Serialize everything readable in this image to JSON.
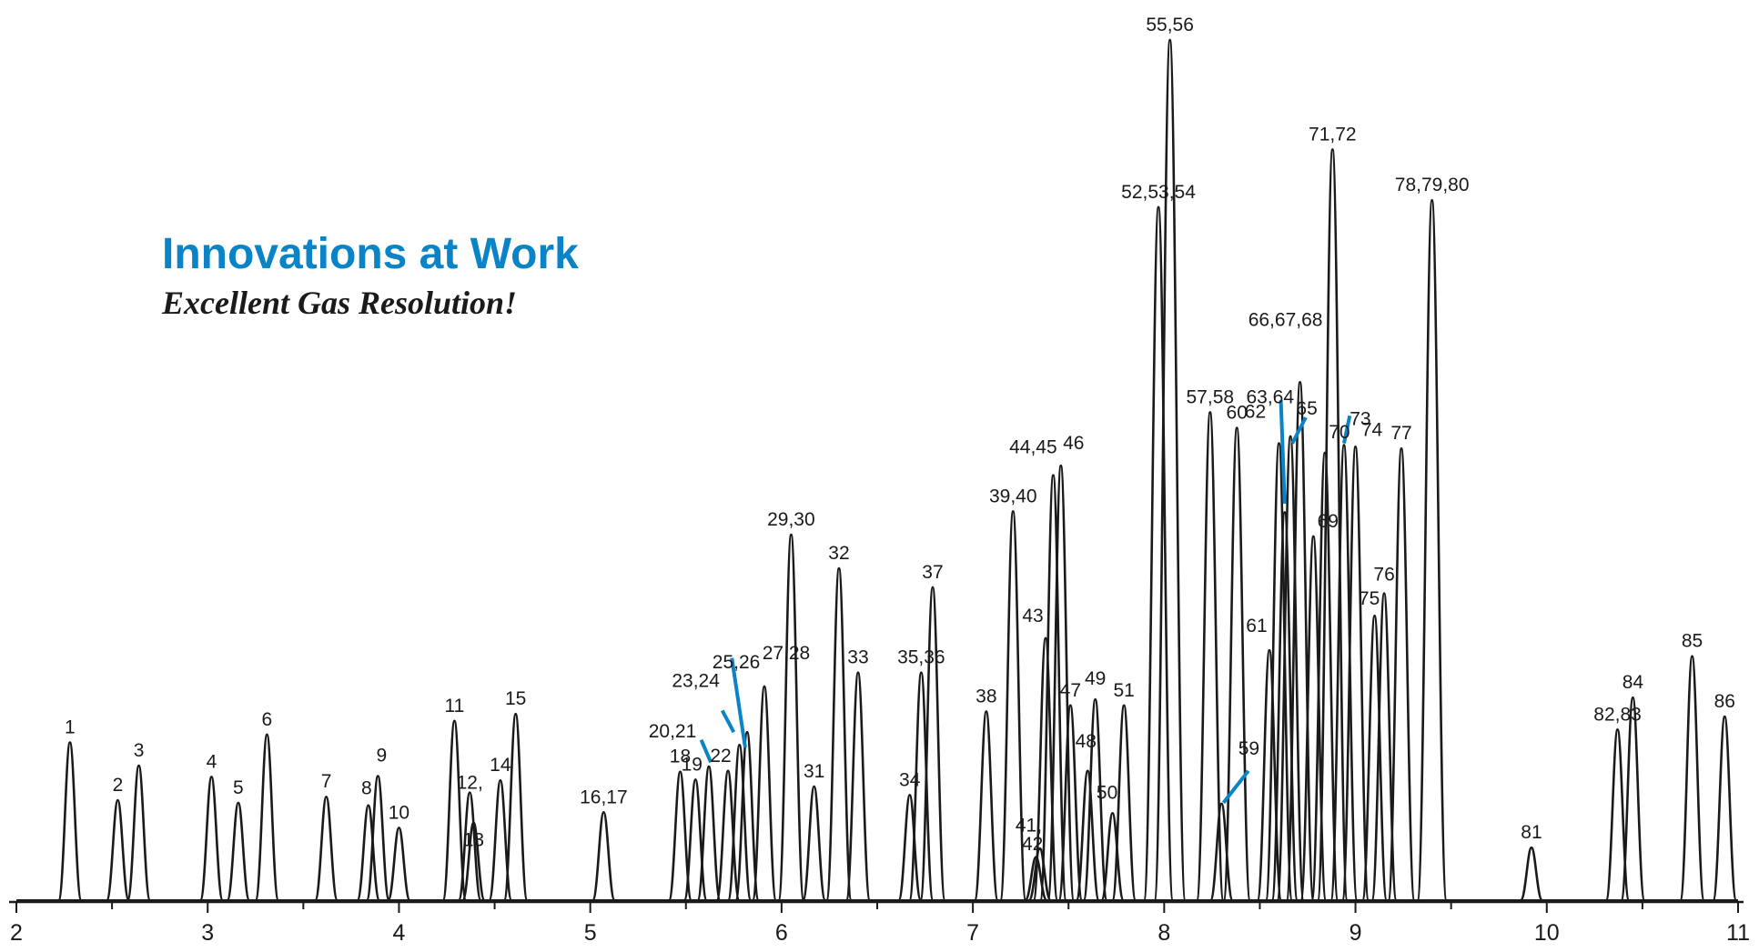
{
  "chart_data": {
    "type": "line",
    "title": "Innovations at Work",
    "subtitle": "Excellent Gas Resolution!",
    "xlabel": "",
    "ylabel": "",
    "xlim": [
      2,
      11
    ],
    "ylim": [
      0,
      100
    ],
    "x_ticks": [
      "2",
      "3",
      "4",
      "5",
      "6",
      "7",
      "8",
      "9",
      "10",
      "11"
    ],
    "grid": false,
    "legend": "none",
    "colors": {
      "trace": "#1a1a1a",
      "callout": "#0a84c6",
      "title": "#0a84c6"
    },
    "peaks": [
      {
        "label": "1",
        "x": 2.28,
        "y": 18.3
      },
      {
        "label": "2",
        "x": 2.53,
        "y": 11.6
      },
      {
        "label": "3",
        "x": 2.64,
        "y": 15.6
      },
      {
        "label": "4",
        "x": 3.02,
        "y": 14.3
      },
      {
        "label": "5",
        "x": 3.16,
        "y": 11.3
      },
      {
        "label": "6",
        "x": 3.31,
        "y": 19.2
      },
      {
        "label": "7",
        "x": 3.62,
        "y": 12.0
      },
      {
        "label": "8",
        "x": 3.84,
        "y": 11.0
      },
      {
        "label": "9",
        "x": 3.89,
        "y": 14.4
      },
      {
        "label": "10",
        "x": 4.0,
        "y": 8.4
      },
      {
        "label": "11",
        "x": 4.29,
        "y": 20.8
      },
      {
        "label": "12,",
        "x": 4.37,
        "y": 12.5
      },
      {
        "label": "13",
        "x": 4.39,
        "y": 9.0
      },
      {
        "label": "14",
        "x": 4.53,
        "y": 13.9
      },
      {
        "label": "15",
        "x": 4.61,
        "y": 21.6
      },
      {
        "label": "16,17",
        "x": 5.07,
        "y": 10.2
      },
      {
        "label": "18",
        "x": 5.47,
        "y": 14.9
      },
      {
        "label": "19",
        "x": 5.55,
        "y": 14.0
      },
      {
        "label": "20,21",
        "x": 5.62,
        "y": 15.5
      },
      {
        "label": "22",
        "x": 5.72,
        "y": 15.0
      },
      {
        "label": "23,24",
        "x": 5.78,
        "y": 18.0
      },
      {
        "label": "25,26",
        "x": 5.82,
        "y": 19.5
      },
      {
        "label": "27,28",
        "x": 5.91,
        "y": 24.8
      },
      {
        "label": "29,30",
        "x": 6.05,
        "y": 42.4
      },
      {
        "label": "31",
        "x": 6.17,
        "y": 13.2
      },
      {
        "label": "32",
        "x": 6.3,
        "y": 38.5
      },
      {
        "label": "33",
        "x": 6.4,
        "y": 26.4
      },
      {
        "label": "34",
        "x": 6.67,
        "y": 12.2
      },
      {
        "label": "35,36",
        "x": 6.73,
        "y": 26.4
      },
      {
        "label": "37",
        "x": 6.79,
        "y": 36.3
      },
      {
        "label": "38",
        "x": 7.07,
        "y": 21.9
      },
      {
        "label": "39,40",
        "x": 7.21,
        "y": 45.1
      },
      {
        "label": "41,",
        "x": 7.33,
        "y": 5.0
      },
      {
        "label": "42",
        "x": 7.35,
        "y": 6.0
      },
      {
        "label": "43",
        "x": 7.38,
        "y": 30.4
      },
      {
        "label": "44,45",
        "x": 7.42,
        "y": 49.3
      },
      {
        "label": "46",
        "x": 7.46,
        "y": 50.4
      },
      {
        "label": "47",
        "x": 7.51,
        "y": 22.6
      },
      {
        "label": "48",
        "x": 7.6,
        "y": 15.0
      },
      {
        "label": "49",
        "x": 7.64,
        "y": 23.3
      },
      {
        "label": "50",
        "x": 7.73,
        "y": 10.1
      },
      {
        "label": "51",
        "x": 7.79,
        "y": 22.6
      },
      {
        "label": "52,53,54",
        "x": 7.97,
        "y": 80.4
      },
      {
        "label": "55,56",
        "x": 8.03,
        "y": 99.8
      },
      {
        "label": "57,58",
        "x": 8.24,
        "y": 56.6
      },
      {
        "label": "59",
        "x": 8.3,
        "y": 11.2
      },
      {
        "label": "60",
        "x": 8.38,
        "y": 54.8
      },
      {
        "label": "61",
        "x": 8.55,
        "y": 29.0
      },
      {
        "label": "62",
        "x": 8.6,
        "y": 53.0
      },
      {
        "label": "63,64",
        "x": 8.63,
        "y": 45.0
      },
      {
        "label": "65",
        "x": 8.66,
        "y": 53.8
      },
      {
        "label": "66,67,68",
        "x": 8.71,
        "y": 60.1
      },
      {
        "label": "69",
        "x": 8.78,
        "y": 42.2
      },
      {
        "label": "70",
        "x": 8.84,
        "y": 51.9
      },
      {
        "label": "71,72",
        "x": 8.88,
        "y": 87.1
      },
      {
        "label": "73",
        "x": 8.94,
        "y": 52.8
      },
      {
        "label": "74",
        "x": 9.0,
        "y": 52.6
      },
      {
        "label": "75",
        "x": 9.1,
        "y": 33.0
      },
      {
        "label": "76",
        "x": 9.15,
        "y": 35.6
      },
      {
        "label": "77",
        "x": 9.24,
        "y": 52.4
      },
      {
        "label": "78,79,80",
        "x": 9.4,
        "y": 81.2
      },
      {
        "label": "81",
        "x": 9.92,
        "y": 6.1
      },
      {
        "label": "82,83",
        "x": 10.37,
        "y": 19.8
      },
      {
        "label": "84",
        "x": 10.45,
        "y": 23.5
      },
      {
        "label": "85",
        "x": 10.76,
        "y": 28.3
      },
      {
        "label": "86",
        "x": 10.93,
        "y": 21.3
      }
    ]
  }
}
